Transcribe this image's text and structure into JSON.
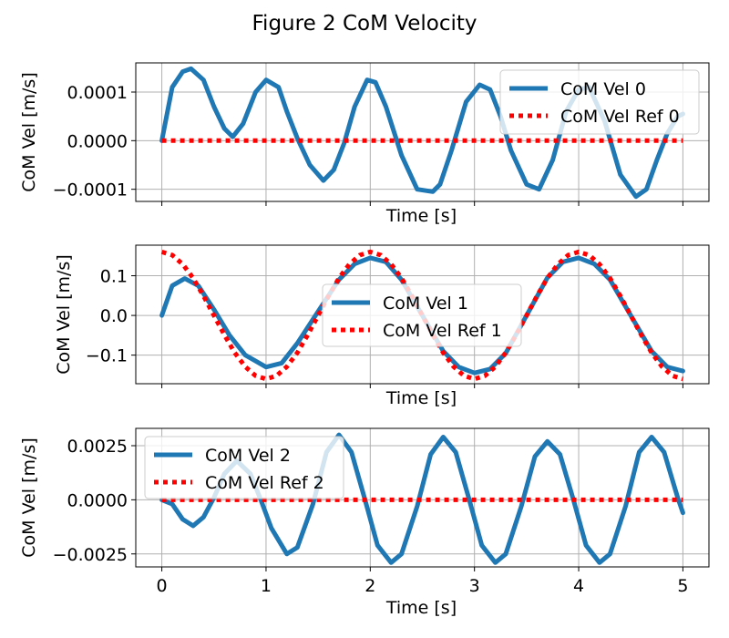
{
  "figure_title": "Figure 2 CoM Velocity",
  "colors": {
    "series": "#1f77b4",
    "reference": "#ff0000",
    "grid": "#b0b0b0",
    "legend_border": "#cccccc"
  },
  "chart_data": [
    {
      "type": "line",
      "xlabel": "Time [s]",
      "ylabel": "CoM Vel [m/s]",
      "xlim": [
        -0.25,
        5.25
      ],
      "ylim": [
        -0.000125,
        0.00016
      ],
      "xticks": [
        0,
        1,
        2,
        3,
        4,
        5
      ],
      "yticks": [
        -0.0001,
        0.0,
        0.0001
      ],
      "ytick_labels": [
        "−0.0001",
        "0.0000",
        "0.0001"
      ],
      "show_xtick_labels": false,
      "grid": true,
      "legend_placement": "upper-right",
      "series": [
        {
          "name": "CoM Vel 0",
          "style": "solid",
          "x": [
            0,
            0.1,
            0.2,
            0.28,
            0.4,
            0.5,
            0.6,
            0.68,
            0.78,
            0.9,
            1.0,
            1.12,
            1.2,
            1.3,
            1.42,
            1.55,
            1.65,
            1.75,
            1.85,
            1.97,
            2.05,
            2.15,
            2.3,
            2.45,
            2.6,
            2.67,
            2.78,
            2.92,
            3.05,
            3.15,
            3.25,
            3.35,
            3.5,
            3.62,
            3.75,
            3.88,
            4.0,
            4.1,
            4.25,
            4.4,
            4.55,
            4.65,
            4.75,
            4.85,
            4.95,
            5.0
          ],
          "y": [
            0,
            0.00011,
            0.000142,
            0.000148,
            0.000125,
            7e-05,
            2.5e-05,
            8e-06,
            3.5e-05,
            0.0001,
            0.000125,
            0.00011,
            6e-05,
            5e-06,
            -5e-05,
            -8.2e-05,
            -6e-05,
            -5e-06,
            7e-05,
            0.000125,
            0.00012,
            7e-05,
            -3e-05,
            -0.0001,
            -0.000105,
            -9e-05,
            -2e-05,
            8e-05,
            0.000115,
            0.000105,
            5e-05,
            -2e-05,
            -9e-05,
            -0.0001,
            -4e-05,
            6e-05,
            0.000105,
            0.00011,
            4e-05,
            -7e-05,
            -0.000115,
            -0.0001,
            -4e-05,
            1.5e-05,
            5e-05,
            5.5e-05
          ]
        },
        {
          "name": "CoM Vel Ref 0",
          "style": "dotted",
          "x": [
            0,
            5
          ],
          "y": [
            0,
            0
          ]
        }
      ]
    },
    {
      "type": "line",
      "xlabel": "Time [s]",
      "ylabel": "CoM Vel [m/s]",
      "xlim": [
        -0.25,
        5.25
      ],
      "ylim": [
        -0.172,
        0.177
      ],
      "xticks": [
        0,
        1,
        2,
        3,
        4,
        5
      ],
      "yticks": [
        -0.1,
        0.0,
        0.1
      ],
      "ytick_labels": [
        "−0.1",
        "0.0",
        "0.1"
      ],
      "show_xtick_labels": false,
      "grid": true,
      "legend_placement": "center",
      "series": [
        {
          "name": "CoM Vel 1",
          "style": "solid",
          "x": [
            0,
            0.1,
            0.22,
            0.35,
            0.5,
            0.65,
            0.8,
            1.0,
            1.15,
            1.3,
            1.5,
            1.7,
            1.85,
            2.0,
            2.15,
            2.3,
            2.5,
            2.7,
            2.85,
            3.0,
            3.15,
            3.3,
            3.5,
            3.7,
            3.85,
            4.0,
            4.15,
            4.3,
            4.5,
            4.7,
            4.85,
            5.0
          ],
          "y": [
            0,
            0.075,
            0.093,
            0.075,
            0.015,
            -0.05,
            -0.1,
            -0.13,
            -0.12,
            -0.07,
            0.01,
            0.09,
            0.13,
            0.145,
            0.135,
            0.09,
            0.0,
            -0.09,
            -0.13,
            -0.145,
            -0.135,
            -0.095,
            0.0,
            0.095,
            0.135,
            0.145,
            0.13,
            0.09,
            0.0,
            -0.09,
            -0.13,
            -0.14
          ]
        },
        {
          "name": "CoM Vel Ref 1",
          "style": "dotted",
          "x": [
            0,
            0.1,
            0.2,
            0.3,
            0.4,
            0.5,
            0.6,
            0.7,
            0.8,
            0.9,
            1.0,
            1.1,
            1.2,
            1.3,
            1.4,
            1.5,
            1.6,
            1.7,
            1.8,
            1.9,
            2.0,
            2.1,
            2.2,
            2.3,
            2.4,
            2.5,
            2.6,
            2.7,
            2.8,
            2.9,
            3.0,
            3.1,
            3.2,
            3.3,
            3.4,
            3.5,
            3.6,
            3.7,
            3.8,
            3.9,
            4.0,
            4.1,
            4.2,
            4.3,
            4.4,
            4.5,
            4.6,
            4.7,
            4.8,
            4.9,
            5.0
          ],
          "y": [
            0.16,
            0.152,
            0.129,
            0.094,
            0.049,
            0.0,
            -0.049,
            -0.094,
            -0.129,
            -0.152,
            -0.16,
            -0.152,
            -0.129,
            -0.094,
            -0.049,
            0.0,
            0.049,
            0.094,
            0.129,
            0.152,
            0.16,
            0.152,
            0.129,
            0.094,
            0.049,
            0.0,
            -0.049,
            -0.094,
            -0.129,
            -0.152,
            -0.16,
            -0.152,
            -0.129,
            -0.094,
            -0.049,
            0.0,
            0.049,
            0.094,
            0.129,
            0.152,
            0.16,
            0.152,
            0.129,
            0.094,
            0.049,
            0.0,
            -0.049,
            -0.094,
            -0.129,
            -0.152,
            -0.16
          ]
        }
      ]
    },
    {
      "type": "line",
      "xlabel": "Time [s]",
      "ylabel": "CoM Vel [m/s]",
      "xlim": [
        -0.25,
        5.25
      ],
      "ylim": [
        -0.0031,
        0.0033
      ],
      "xticks": [
        0,
        1,
        2,
        3,
        4,
        5
      ],
      "yticks": [
        -0.0025,
        0.0,
        0.0025
      ],
      "ytick_labels": [
        "−0.0025",
        "0.0000",
        "0.0025"
      ],
      "show_xtick_labels": true,
      "xtick_labels": [
        "0",
        "1",
        "2",
        "3",
        "4",
        "5"
      ],
      "grid": true,
      "legend_placement": "upper-left",
      "series": [
        {
          "name": "CoM Vel 2",
          "style": "solid",
          "x": [
            0,
            0.1,
            0.2,
            0.3,
            0.4,
            0.5,
            0.6,
            0.72,
            0.85,
            0.95,
            1.05,
            1.2,
            1.3,
            1.45,
            1.58,
            1.7,
            1.82,
            1.95,
            2.07,
            2.2,
            2.3,
            2.45,
            2.58,
            2.7,
            2.82,
            2.95,
            3.07,
            3.2,
            3.3,
            3.45,
            3.58,
            3.7,
            3.82,
            3.95,
            4.07,
            4.2,
            4.3,
            4.45,
            4.58,
            4.7,
            4.82,
            4.95,
            5.0
          ],
          "y": [
            0,
            -0.0002,
            -0.0009,
            -0.0012,
            -0.0008,
            0.0001,
            0.0012,
            0.0018,
            0.0012,
            0.0,
            -0.0013,
            -0.0025,
            -0.0022,
            -0.0002,
            0.0022,
            0.003,
            0.0022,
            0.0,
            -0.0021,
            -0.0029,
            -0.0025,
            -0.0003,
            0.0021,
            0.0029,
            0.0022,
            0.0,
            -0.0021,
            -0.0029,
            -0.0025,
            -0.0003,
            0.002,
            0.0027,
            0.0021,
            0.0,
            -0.0021,
            -0.0029,
            -0.0025,
            -0.0003,
            0.0022,
            0.0029,
            0.0022,
            0.0001,
            -0.0006
          ]
        },
        {
          "name": "CoM Vel Ref 2",
          "style": "dotted",
          "x": [
            0,
            5
          ],
          "y": [
            0,
            0
          ]
        }
      ]
    }
  ]
}
